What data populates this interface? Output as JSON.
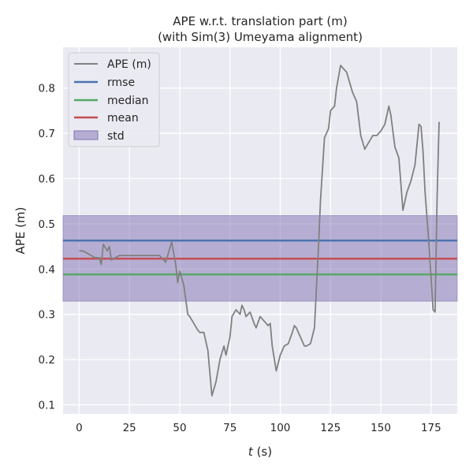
{
  "chart_data": {
    "type": "line",
    "title": "APE w.r.t. translation part (m)",
    "subtitle": "(with Sim(3) Umeyama alignment)",
    "xlabel_var": "t",
    "xlabel_unit": " (s)",
    "ylabel": "APE (m)",
    "xlim": [
      -8,
      188
    ],
    "ylim": [
      0.08,
      0.89
    ],
    "xticks": [
      0,
      25,
      50,
      75,
      100,
      125,
      150,
      175
    ],
    "yticks": [
      0.1,
      0.2,
      0.3,
      0.4,
      0.5,
      0.6,
      0.7,
      0.8
    ],
    "grid": true,
    "legend_position": "top-left",
    "series": [
      {
        "name": "APE (m)",
        "color": "#808080",
        "x": [
          0,
          2,
          4,
          6,
          8,
          10,
          11,
          12,
          14,
          15,
          16,
          18,
          20,
          25,
          30,
          35,
          40,
          43,
          46,
          48,
          49,
          50,
          52,
          54,
          55,
          57,
          59,
          60,
          62,
          64,
          66,
          68,
          70,
          72,
          73,
          75,
          76,
          78,
          80,
          81,
          82,
          83,
          85,
          87,
          88,
          90,
          92,
          94,
          95,
          96,
          98,
          100,
          102,
          104,
          106,
          107,
          108,
          110,
          112,
          113,
          115,
          117,
          119,
          120,
          122,
          124,
          125,
          127,
          128,
          130,
          132,
          133,
          134,
          136,
          138,
          140,
          142,
          144,
          146,
          148,
          150,
          152,
          154,
          155,
          157,
          159,
          161,
          163,
          165,
          167,
          169,
          170,
          171,
          172,
          174,
          176,
          177,
          178,
          179
        ],
        "y": [
          0.44,
          0.44,
          0.435,
          0.43,
          0.425,
          0.425,
          0.41,
          0.455,
          0.44,
          0.45,
          0.42,
          0.425,
          0.43,
          0.43,
          0.43,
          0.43,
          0.43,
          0.415,
          0.46,
          0.41,
          0.37,
          0.395,
          0.365,
          0.3,
          0.295,
          0.28,
          0.265,
          0.26,
          0.26,
          0.22,
          0.12,
          0.15,
          0.2,
          0.23,
          0.21,
          0.25,
          0.295,
          0.31,
          0.3,
          0.32,
          0.31,
          0.295,
          0.305,
          0.28,
          0.27,
          0.295,
          0.285,
          0.275,
          0.28,
          0.23,
          0.175,
          0.21,
          0.23,
          0.235,
          0.26,
          0.275,
          0.27,
          0.25,
          0.23,
          0.23,
          0.235,
          0.27,
          0.45,
          0.55,
          0.69,
          0.71,
          0.75,
          0.76,
          0.8,
          0.85,
          0.84,
          0.835,
          0.82,
          0.79,
          0.77,
          0.695,
          0.665,
          0.68,
          0.695,
          0.695,
          0.705,
          0.72,
          0.76,
          0.74,
          0.67,
          0.645,
          0.53,
          0.57,
          0.595,
          0.63,
          0.72,
          0.715,
          0.66,
          0.57,
          0.45,
          0.31,
          0.305,
          0.56,
          0.725
        ]
      }
    ],
    "hlines": [
      {
        "name": "rmse",
        "value": 0.463,
        "color": "#4c72b0"
      },
      {
        "name": "median",
        "value": 0.388,
        "color": "#55a868"
      },
      {
        "name": "mean",
        "value": 0.423,
        "color": "#c44e52"
      }
    ],
    "band": {
      "name": "std",
      "low": 0.329,
      "high": 0.518,
      "color": "#8172b2"
    }
  }
}
